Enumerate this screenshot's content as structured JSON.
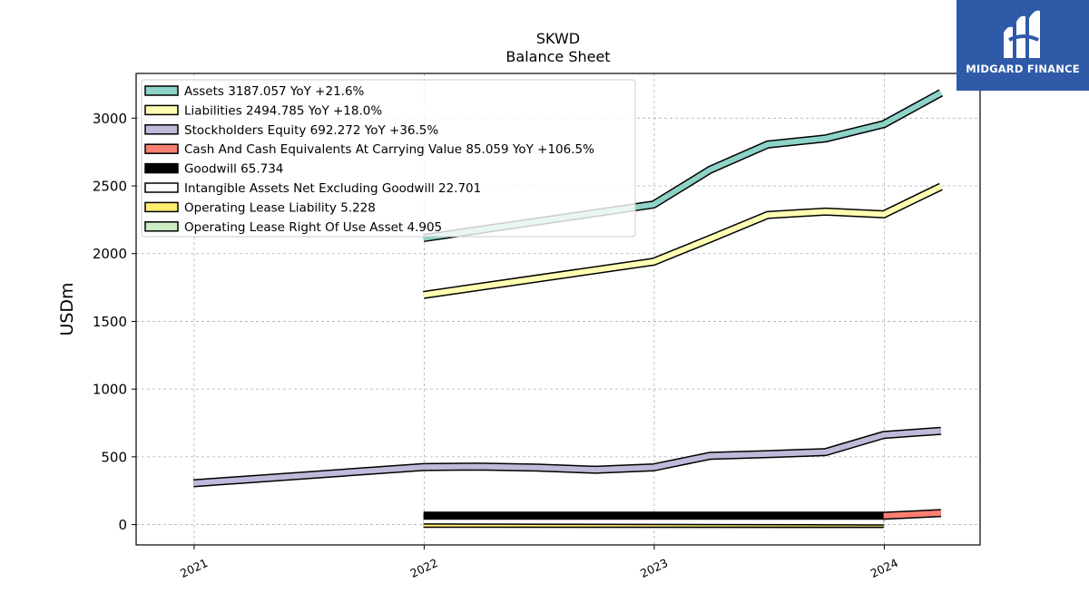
{
  "brand": {
    "name": "MIDGARD FINANCE",
    "bg_color": "#2f5aa8"
  },
  "chart_data": {
    "type": "line",
    "title": "SKWD",
    "subtitle": "Balance  Sheet",
    "ylabel": "USDm",
    "xlabel": "",
    "x_ticks": [
      "2021",
      "2022",
      "2023",
      "2024"
    ],
    "y_ticks": [
      "0",
      "500",
      "1000",
      "1500",
      "2000",
      "2500",
      "3000"
    ],
    "xlim": [
      "2020-10-01",
      "2024-06-01"
    ],
    "ylim": [
      -150,
      3330
    ],
    "grid": true,
    "legend_position": "upper-left",
    "series": [
      {
        "name": "Assets",
        "legend": "Assets  3187.057 YoY +21.6%",
        "color": "#8dd3c7",
        "points": [
          [
            "2021-12-31",
            2115
          ],
          [
            "2022-12-31",
            2362
          ],
          [
            "2023-03-31",
            2620
          ],
          [
            "2023-06-30",
            2805
          ],
          [
            "2023-09-30",
            2850
          ],
          [
            "2023-12-31",
            2955
          ],
          [
            "2024-03-31",
            3187
          ]
        ]
      },
      {
        "name": "Liabilities",
        "legend": "Liabilities  2494.785 YoY +18.0%",
        "color": "#ffffb3",
        "points": [
          [
            "2021-12-31",
            1695
          ],
          [
            "2022-12-31",
            1940
          ],
          [
            "2023-03-31",
            2110
          ],
          [
            "2023-06-30",
            2285
          ],
          [
            "2023-09-30",
            2310
          ],
          [
            "2023-12-31",
            2290
          ],
          [
            "2024-03-31",
            2495
          ]
        ]
      },
      {
        "name": "Stockholders Equity",
        "legend": "Stockholders Equity  692.272 YoY +36.5%",
        "color": "#bebada",
        "points": [
          [
            "2020-12-31",
            305
          ],
          [
            "2021-12-31",
            425
          ],
          [
            "2022-03-31",
            428
          ],
          [
            "2022-06-30",
            420
          ],
          [
            "2022-09-30",
            405
          ],
          [
            "2022-12-31",
            422
          ],
          [
            "2023-03-31",
            508
          ],
          [
            "2023-06-30",
            520
          ],
          [
            "2023-09-30",
            535
          ],
          [
            "2023-12-31",
            662
          ],
          [
            "2024-03-31",
            692
          ]
        ]
      },
      {
        "name": "Cash And Cash Equivalents At Carrying Value",
        "legend": "Cash And Cash Equivalents At Carrying Value  85.059 YoY +106.5%",
        "color": "#fb8072",
        "points": [
          [
            "2023-12-31",
            65
          ],
          [
            "2024-03-31",
            85
          ]
        ]
      },
      {
        "name": "Goodwill",
        "legend": "Goodwill  65.734",
        "color": "#000000",
        "points": [
          [
            "2021-12-31",
            65.7
          ],
          [
            "2022-12-31",
            65.7
          ],
          [
            "2023-06-30",
            65.7
          ],
          [
            "2023-12-31",
            65.7
          ]
        ]
      },
      {
        "name": "Intangible Assets Net Excluding Goodwill",
        "legend": "Intangible Assets Net Excluding Goodwill  22.701",
        "color": "#ffffff",
        "points": [
          [
            "2021-12-31",
            30
          ],
          [
            "2023-12-31",
            22.7
          ]
        ]
      },
      {
        "name": "Operating Lease Liability",
        "legend": "Operating Lease Liability  5.228",
        "color": "#ffed6f",
        "points": [
          [
            "2021-12-31",
            6
          ],
          [
            "2023-12-31",
            5.2
          ]
        ]
      },
      {
        "name": "Operating Lease Right Of Use Asset",
        "legend": "Operating Lease Right Of Use Asset  4.905",
        "color": "#ccebc5",
        "points": [
          [
            "2021-12-31",
            8
          ],
          [
            "2023-12-31",
            4.9
          ]
        ]
      }
    ]
  }
}
